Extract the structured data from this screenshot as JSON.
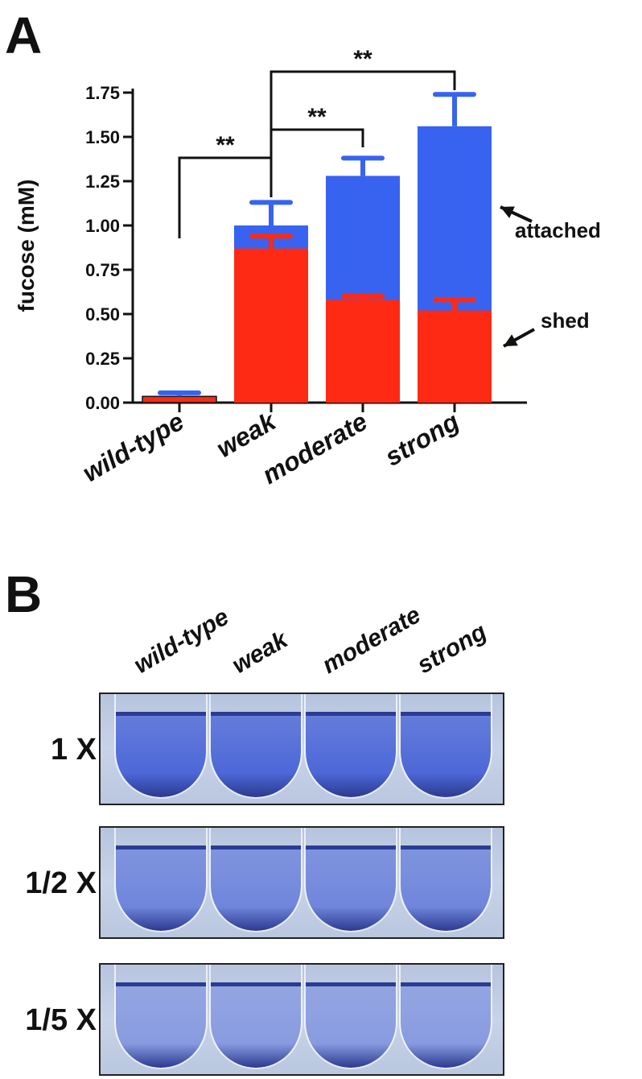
{
  "panel_a": {
    "letter": "A"
  },
  "panel_b": {
    "letter": "B"
  },
  "chart_data": {
    "type": "bar",
    "stacked": true,
    "categories": [
      "wild-type",
      "weak",
      "moderate",
      "strong"
    ],
    "series": [
      {
        "name": "shed",
        "color": "#ff2a14",
        "values": [
          0.03,
          0.87,
          0.58,
          0.52
        ],
        "errors": [
          0.0,
          0.07,
          0.02,
          0.06
        ]
      },
      {
        "name": "attached",
        "color": "#3763f0",
        "values": [
          0.005,
          0.13,
          0.7,
          1.04
        ],
        "errors": [
          0.02,
          0.13,
          0.1,
          0.18
        ]
      }
    ],
    "ylabel": "fucose (mM)",
    "ylim": [
      0,
      1.75
    ],
    "yticks": [
      "0.00",
      "0.25",
      "0.50",
      "0.75",
      "1.00",
      "1.25",
      "1.50",
      "1.75"
    ],
    "significance": [
      {
        "from": "wild-type",
        "to": "weak",
        "label": "**"
      },
      {
        "from": "weak",
        "to": "moderate",
        "label": "**"
      },
      {
        "from": "weak",
        "to": "strong",
        "label": "**"
      }
    ],
    "annotations": [
      "attached",
      "shed"
    ]
  },
  "tubes": {
    "columns": [
      "wild-type",
      "weak",
      "moderate",
      "strong"
    ],
    "rows": [
      {
        "label": "1 X",
        "fill_color": "#4d68d8"
      },
      {
        "label": "1/2 X",
        "fill_color": "#6f86dc"
      },
      {
        "label": "1/5 X",
        "fill_color": "#889be0"
      }
    ]
  }
}
